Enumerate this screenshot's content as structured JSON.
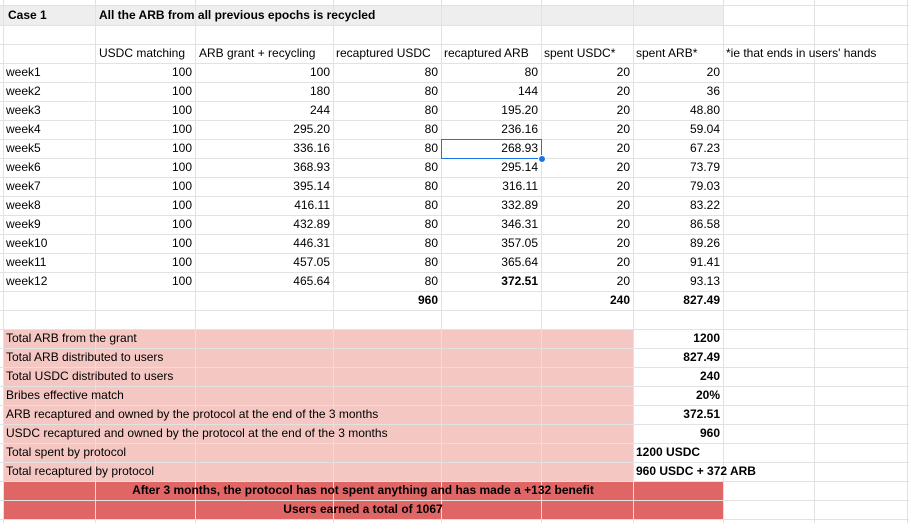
{
  "title": {
    "case": "Case 1",
    "description": "All the ARB from all previous epochs is recycled"
  },
  "columns": [
    "USDC matching",
    "ARB grant + recycling",
    "recaptured USDC",
    "recaptured ARB",
    "spent USDC*",
    "spent ARB*"
  ],
  "footnote": "*ie that ends in users' hands",
  "rows": [
    {
      "label": "week1",
      "usdc": "100",
      "arb_grant": "100",
      "rec_usdc": "80",
      "rec_arb": "80",
      "spent_usdc": "20",
      "spent_arb": "20"
    },
    {
      "label": "week2",
      "usdc": "100",
      "arb_grant": "180",
      "rec_usdc": "80",
      "rec_arb": "144",
      "spent_usdc": "20",
      "spent_arb": "36"
    },
    {
      "label": "week3",
      "usdc": "100",
      "arb_grant": "244",
      "rec_usdc": "80",
      "rec_arb": "195.20",
      "spent_usdc": "20",
      "spent_arb": "48.80"
    },
    {
      "label": "week4",
      "usdc": "100",
      "arb_grant": "295.20",
      "rec_usdc": "80",
      "rec_arb": "236.16",
      "spent_usdc": "20",
      "spent_arb": "59.04"
    },
    {
      "label": "week5",
      "usdc": "100",
      "arb_grant": "336.16",
      "rec_usdc": "80",
      "rec_arb": "268.93",
      "spent_usdc": "20",
      "spent_arb": "67.23"
    },
    {
      "label": "week6",
      "usdc": "100",
      "arb_grant": "368.93",
      "rec_usdc": "80",
      "rec_arb": "295.14",
      "spent_usdc": "20",
      "spent_arb": "73.79"
    },
    {
      "label": "week7",
      "usdc": "100",
      "arb_grant": "395.14",
      "rec_usdc": "80",
      "rec_arb": "316.11",
      "spent_usdc": "20",
      "spent_arb": "79.03"
    },
    {
      "label": "week8",
      "usdc": "100",
      "arb_grant": "416.11",
      "rec_usdc": "80",
      "rec_arb": "332.89",
      "spent_usdc": "20",
      "spent_arb": "83.22"
    },
    {
      "label": "week9",
      "usdc": "100",
      "arb_grant": "432.89",
      "rec_usdc": "80",
      "rec_arb": "346.31",
      "spent_usdc": "20",
      "spent_arb": "86.58"
    },
    {
      "label": "week10",
      "usdc": "100",
      "arb_grant": "446.31",
      "rec_usdc": "80",
      "rec_arb": "357.05",
      "spent_usdc": "20",
      "spent_arb": "89.26"
    },
    {
      "label": "week11",
      "usdc": "100",
      "arb_grant": "457.05",
      "rec_usdc": "80",
      "rec_arb": "365.64",
      "spent_usdc": "20",
      "spent_arb": "91.41"
    },
    {
      "label": "week12",
      "usdc": "100",
      "arb_grant": "465.64",
      "rec_usdc": "80",
      "rec_arb": "372.51",
      "spent_usdc": "20",
      "spent_arb": "93.13"
    }
  ],
  "totals": {
    "rec_usdc": "960",
    "spent_usdc": "240",
    "spent_arb": "827.49"
  },
  "summary": [
    {
      "label": "Total ARB from the grant",
      "value": "1200"
    },
    {
      "label": "Total ARB distributed to users",
      "value": "827.49"
    },
    {
      "label": "Total USDC distributed to users",
      "value": "240"
    },
    {
      "label": "Bribes effective match",
      "value": "20%"
    },
    {
      "label": "ARB recaptured and owned by the protocol at the end of the 3 months",
      "value": "372.51"
    },
    {
      "label": "USDC recaptured and owned by the protocol at the end of the 3 months",
      "value": "960"
    },
    {
      "label": "Total spent by protocol",
      "value": "1200 USDC"
    },
    {
      "label": "Total recaptured by protocol",
      "value": "960 USDC + 372 ARB"
    }
  ],
  "conclusion": [
    "After 3 months, the protocol has not spent anything and has made a +132 benefit",
    "Users earned a total of 1067"
  ],
  "colors": {
    "header_bg": "#eeeeee",
    "summary_bg": "#f4c7c3",
    "conclusion_bg": "#e06666",
    "selection": "#1a73e8"
  },
  "selected_cell": "268.93"
}
